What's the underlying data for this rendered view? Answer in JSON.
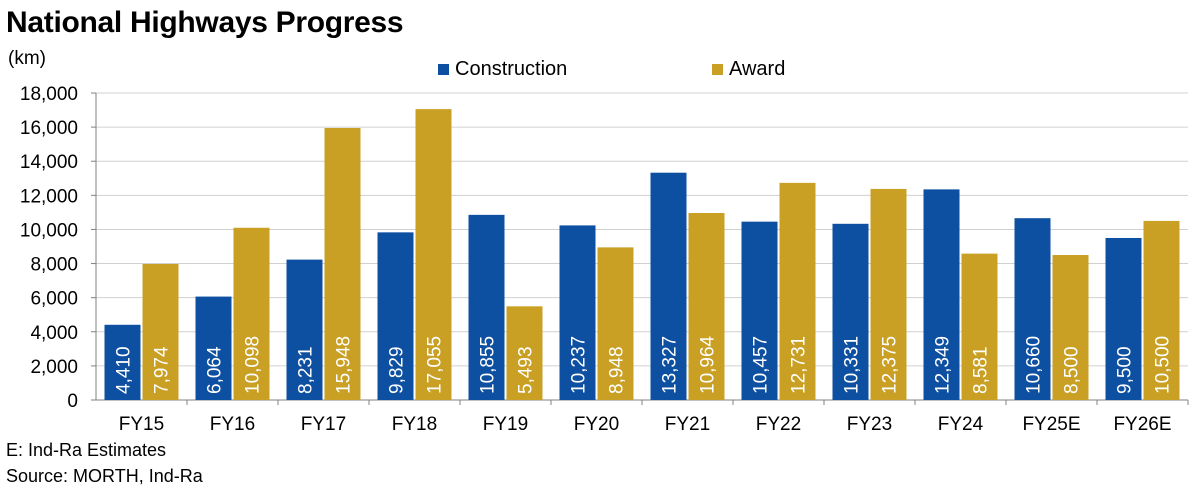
{
  "colors": {
    "construction": "#0d4fa0",
    "award": "#c9a024",
    "grid": "#d0d0d0",
    "axis": "#808080"
  },
  "chart_data": {
    "type": "bar",
    "title": "National Highways Progress",
    "ylabel": "(km)",
    "xlabel": "",
    "categories": [
      "FY15",
      "FY16",
      "FY17",
      "FY18",
      "FY19",
      "FY20",
      "FY21",
      "FY22",
      "FY23",
      "FY24",
      "FY25E",
      "FY26E"
    ],
    "series": [
      {
        "name": "Construction",
        "values": [
          4410,
          6064,
          8231,
          9829,
          10855,
          10237,
          13327,
          10457,
          10331,
          12349,
          10660,
          9500
        ],
        "labels": [
          "4,410",
          "6,064",
          "8,231",
          "9,829",
          "10,855",
          "10,237",
          "13,327",
          "10,457",
          "10,331",
          "12,349",
          "10,660",
          "9,500"
        ]
      },
      {
        "name": "Award",
        "values": [
          7974,
          10098,
          15948,
          17055,
          5493,
          8948,
          10964,
          12731,
          12375,
          8581,
          8500,
          10500
        ],
        "labels": [
          "7,974",
          "10,098",
          "15,948",
          "17,055",
          "5,493",
          "8,948",
          "10,964",
          "12,731",
          "12,375",
          "8,581",
          "8,500",
          "10,500"
        ]
      }
    ],
    "ylim": [
      0,
      18000
    ],
    "yticks": [
      0,
      2000,
      4000,
      6000,
      8000,
      10000,
      12000,
      14000,
      16000,
      18000
    ],
    "ytick_labels": [
      "0",
      "2,000",
      "4,000",
      "6,000",
      "8,000",
      "10,000",
      "12,000",
      "14,000",
      "16,000",
      "18,000"
    ],
    "grid": true,
    "legend_position": "top-center"
  },
  "footnotes": {
    "estimates": "E: Ind-Ra Estimates",
    "source": "Source: MORTH, Ind-Ra"
  }
}
